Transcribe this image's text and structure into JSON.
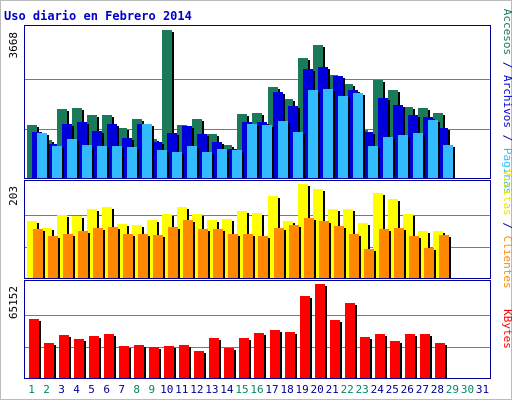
{
  "chart_data": {
    "title": "Uso diario en Febrero 2014",
    "type": "bar",
    "days": [
      "1",
      "2",
      "3",
      "4",
      "5",
      "6",
      "7",
      "8",
      "9",
      "10",
      "11",
      "12",
      "13",
      "14",
      "15",
      "16",
      "17",
      "18",
      "19",
      "20",
      "21",
      "22",
      "23",
      "24",
      "25",
      "26",
      "27",
      "28",
      "29",
      "30",
      "31"
    ],
    "weekend_days": [
      "1",
      "2",
      "8",
      "9",
      "15",
      "16",
      "22",
      "23",
      "29",
      "30"
    ],
    "colors": {
      "accesos": "#1a7a5a",
      "archivos": "#0000dd",
      "paginas": "#33bbff",
      "visitas": "#ffff00",
      "clientes": "#ff8800",
      "kbytes": "#ff0000",
      "weekday": "#000099",
      "weekend": "#008866",
      "frame": "#000099",
      "title": "#0000cc"
    },
    "panels": [
      {
        "id": "hits",
        "ymax_label": "3668",
        "ymax": 3668,
        "right_labels": [
          {
            "text": "Accesos",
            "color": "#1a7a5a"
          },
          {
            "text": " / ",
            "color": "#000099"
          },
          {
            "text": "Archivos",
            "color": "#0000dd"
          },
          {
            "text": " / ",
            "color": "#000099"
          },
          {
            "text": "Páginas",
            "color": "#33bbff"
          }
        ],
        "series": [
          {
            "name": "Accesos",
            "color": "#1a7a5a",
            "values": [
              1320,
              940,
              1710,
              1730,
              1560,
              1560,
              1240,
              1450,
              970,
              3668,
              1310,
              1450,
              1090,
              830,
              1580,
              1620,
              2260,
              1950,
              2970,
              3300,
              2550,
              2330,
              1190,
              2430,
              2170,
              1770,
              1740,
              1620
            ]
          },
          {
            "name": "Archivos",
            "color": "#0000dd",
            "values": [
              1140,
              850,
              1330,
              1390,
              1170,
              1330,
              990,
              1330,
              880,
              1120,
              1280,
              1100,
              880,
              730,
              1400,
              1400,
              2120,
              1780,
              2700,
              2740,
              2520,
              2170,
              1130,
              1990,
              1810,
              1550,
              1510,
              1240
            ]
          },
          {
            "name": "Páginas",
            "color": "#33bbff",
            "values": [
              1120,
              800,
              970,
              820,
              790,
              800,
              760,
              1330,
              690,
              650,
              800,
              650,
              710,
              690,
              1350,
              1320,
              1410,
              1140,
              2170,
              2200,
              2020,
              2110,
              800,
              1020,
              1070,
              1110,
              1430,
              820
            ]
          }
        ]
      },
      {
        "id": "visits",
        "ymax_label": "203",
        "ymax": 203,
        "right_labels": [
          {
            "text": "Visitas",
            "color": "#e8e800"
          },
          {
            "text": " / ",
            "color": "#000099"
          },
          {
            "text": "Clientes",
            "color": "#ff8800"
          }
        ],
        "series": [
          {
            "name": "Visitas",
            "color": "#ffff00",
            "values": [
              124,
              107,
              136,
              134,
              150,
              154,
              117,
              115,
              125,
              138,
              154,
              138,
              126,
              128,
              145,
              141,
              177,
              123,
              203,
              193,
              150,
              148,
              119,
              183,
              171,
              138,
              101,
              102
            ]
          },
          {
            "name": "Clientes",
            "color": "#ff8800",
            "values": [
              105,
              90,
              96,
              101,
              109,
              110,
              94,
              94,
              92,
              111,
              126,
              106,
              105,
              96,
              96,
              90,
              109,
              114,
              130,
              124,
              112,
              96,
              63,
              105,
              109,
              90,
              65,
              93
            ]
          }
        ]
      },
      {
        "id": "kbytes",
        "ymax_label": "65152",
        "ymax": 65152,
        "right_labels": [
          {
            "text": "KBytes",
            "color": "#ff0000"
          }
        ],
        "series": [
          {
            "name": "KBytes",
            "color": "#ff0000",
            "values": [
              40600,
              24500,
              29700,
              27200,
              29300,
              30400,
              22100,
              22600,
              21400,
              22100,
              23200,
              18600,
              27500,
              20700,
              27900,
              31100,
              33100,
              31600,
              57000,
              65152,
              40100,
              51800,
              28400,
              30400,
              25500,
              30200,
              30200,
              24400
            ]
          }
        ]
      }
    ]
  }
}
